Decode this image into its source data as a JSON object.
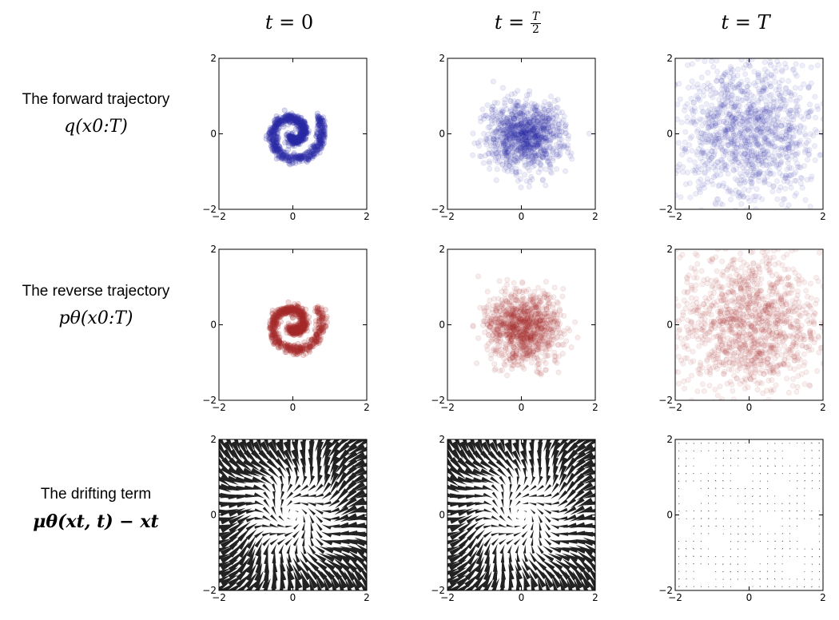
{
  "columns": {
    "c0": {
      "lhs": "t = ",
      "rhs": "0"
    },
    "c1": {
      "lhs": "t = ",
      "num": "T",
      "den": "2"
    },
    "c2": {
      "lhs": "t = ",
      "rhs": "T"
    }
  },
  "rows": {
    "r0": {
      "label": "The forward trajectory",
      "math": "q(x0:T)"
    },
    "r1": {
      "label": "The reverse trajectory",
      "math": "pθ(x0:T)"
    },
    "r2": {
      "label": "The drifting term",
      "math": "μθ(xt, t) − xt"
    }
  },
  "colors": {
    "forward": "#2a2aa8",
    "reverse": "#a82a2a",
    "arrow": "#222222"
  },
  "chart_data": [
    {
      "type": "scatter",
      "row": 0,
      "col": 0,
      "series": [
        {
          "color": "#2a2aa8",
          "points": "swiss-roll spiral, tight"
        }
      ],
      "xlim": [
        -2,
        2
      ],
      "ylim": [
        -2,
        2
      ],
      "xticks": [
        -2,
        0,
        2
      ],
      "yticks": [
        -2,
        0,
        2
      ]
    },
    {
      "type": "scatter",
      "row": 0,
      "col": 1,
      "series": [
        {
          "color": "#2a2aa8",
          "points": "swiss-roll spiral, diffused"
        }
      ],
      "xlim": [
        -2,
        2
      ],
      "ylim": [
        -2,
        2
      ],
      "xticks": [
        -2,
        0,
        2
      ],
      "yticks": [
        -2,
        0,
        2
      ]
    },
    {
      "type": "scatter",
      "row": 0,
      "col": 2,
      "series": [
        {
          "color": "#2a2aa8",
          "points": "gaussian noise"
        }
      ],
      "xlim": [
        -2,
        2
      ],
      "ylim": [
        -2,
        2
      ],
      "xticks": [
        -2,
        0,
        2
      ],
      "yticks": [
        -2,
        0,
        2
      ]
    },
    {
      "type": "scatter",
      "row": 1,
      "col": 0,
      "series": [
        {
          "color": "#a82a2a",
          "points": "swiss-roll spiral, tight"
        }
      ],
      "xlim": [
        -2,
        2
      ],
      "ylim": [
        -2,
        2
      ],
      "xticks": [
        -2,
        0,
        2
      ],
      "yticks": [
        -2,
        0,
        2
      ]
    },
    {
      "type": "scatter",
      "row": 1,
      "col": 1,
      "series": [
        {
          "color": "#a82a2a",
          "points": "swiss-roll spiral, diffused"
        }
      ],
      "xlim": [
        -2,
        2
      ],
      "ylim": [
        -2,
        2
      ],
      "xticks": [
        -2,
        0,
        2
      ],
      "yticks": [
        -2,
        0,
        2
      ]
    },
    {
      "type": "scatter",
      "row": 1,
      "col": 2,
      "series": [
        {
          "color": "#a82a2a",
          "points": "gaussian noise"
        }
      ],
      "xlim": [
        -2,
        2
      ],
      "ylim": [
        -2,
        2
      ],
      "xticks": [
        -2,
        0,
        2
      ],
      "yticks": [
        -2,
        0,
        2
      ]
    },
    {
      "type": "quiver",
      "row": 2,
      "col": 0,
      "strength": 1.0,
      "xlim": [
        -2,
        2
      ],
      "ylim": [
        -2,
        2
      ],
      "xticks": [
        -2,
        0,
        2
      ],
      "yticks": [
        -2,
        0,
        2
      ]
    },
    {
      "type": "quiver",
      "row": 2,
      "col": 1,
      "strength": 0.9,
      "xlim": [
        -2,
        2
      ],
      "ylim": [
        -2,
        2
      ],
      "xticks": [
        -2,
        0,
        2
      ],
      "yticks": [
        -2,
        0,
        2
      ]
    },
    {
      "type": "quiver",
      "row": 2,
      "col": 2,
      "strength": 0.3,
      "xlim": [
        -2,
        2
      ],
      "ylim": [
        -2,
        2
      ],
      "xticks": [
        -2,
        0,
        2
      ],
      "yticks": [
        -2,
        0,
        2
      ]
    }
  ]
}
